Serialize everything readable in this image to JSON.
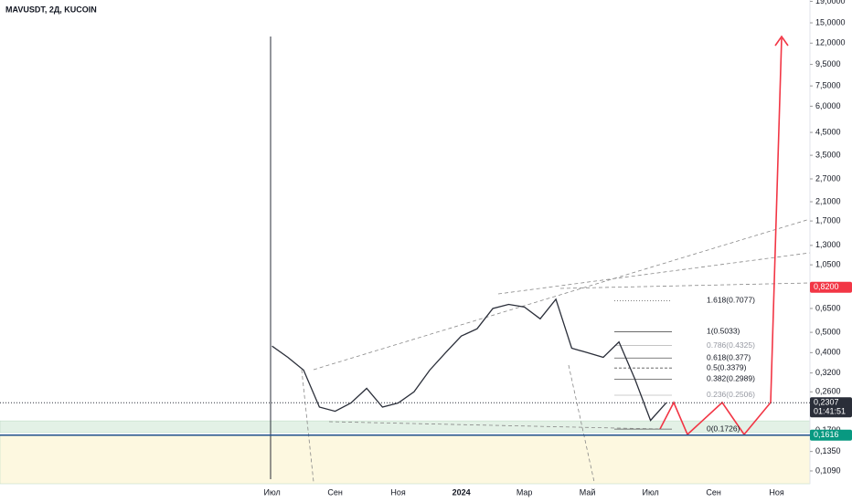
{
  "chart_data": {
    "type": "line",
    "title": "MAVUSDT, 2Д, KUCOIN",
    "log_scale": true,
    "color": "#2a2e39",
    "categories": [
      "Июл",
      null,
      null,
      null,
      "Сен",
      null,
      null,
      null,
      "Ноя",
      null,
      null,
      null,
      "2024",
      null,
      null,
      null,
      "Мар",
      null,
      null,
      null,
      "Май",
      null,
      null,
      null,
      "Июл",
      null,
      null,
      null,
      "Сен",
      null,
      null,
      null,
      "Ноя",
      null,
      null,
      null
    ],
    "values": [
      0.43,
      0.38,
      0.33,
      0.22,
      0.21,
      0.23,
      0.27,
      0.22,
      0.23,
      0.26,
      0.33,
      0.4,
      0.48,
      0.52,
      0.65,
      0.68,
      0.66,
      0.58,
      0.72,
      0.42,
      0.4,
      0.38,
      0.45,
      0.3,
      0.19,
      0.2307,
      null,
      null,
      null,
      null,
      null,
      null,
      null,
      null,
      null,
      null
    ],
    "ylim": [
      0.0947,
      19.28
    ],
    "yticks": [
      {
        "value": 19,
        "label": "19,0000"
      },
      {
        "value": 15,
        "label": "15,0000"
      },
      {
        "value": 12,
        "label": "12,0000"
      },
      {
        "value": 9.5,
        "label": "9,5000"
      },
      {
        "value": 7.5,
        "label": "7,5000"
      },
      {
        "value": 6,
        "label": "6,0000"
      },
      {
        "value": 4.5,
        "label": "4,5000"
      },
      {
        "value": 3.5,
        "label": "3,5000"
      },
      {
        "value": 2.7,
        "label": "2,7000"
      },
      {
        "value": 2.1,
        "label": "2,1000"
      },
      {
        "value": 1.7,
        "label": "1,7000"
      },
      {
        "value": 1.3,
        "label": "1,3000"
      },
      {
        "value": 1.05,
        "label": "1,0500"
      },
      {
        "value": 0.65,
        "label": "0,6500"
      },
      {
        "value": 0.5,
        "label": "0,5000"
      },
      {
        "value": 0.4,
        "label": "0,4000"
      },
      {
        "value": 0.32,
        "label": "0,3200"
      },
      {
        "value": 0.26,
        "label": "0,2600"
      },
      {
        "value": 0.17,
        "label": "0,1700"
      },
      {
        "value": 0.135,
        "label": "0,1350"
      },
      {
        "value": 0.109,
        "label": "0,1090"
      }
    ],
    "price_labels": [
      {
        "value": 0.82,
        "label": "0,8200",
        "color": "#f23645"
      },
      {
        "value": 0.2307,
        "label": "0,2307",
        "sub": "01:41:51",
        "color": "#2a2e39"
      },
      {
        "value": 0.1616,
        "label": "0,1616",
        "color": "#089981"
      }
    ],
    "zones": [
      {
        "from": 0.166,
        "to": 0.189,
        "color": "#e3f1e6"
      },
      {
        "from": 0.0947,
        "to": 0.1616,
        "color": "#fdf8e0"
      }
    ],
    "fib_levels": [
      {
        "value": 0.7077,
        "label": "1.618(0.7077)",
        "color": "#131722"
      },
      {
        "value": 0.5033,
        "label": "1(0.5033)",
        "color": "#131722"
      },
      {
        "value": 0.4325,
        "label": "0.786(0.4325)",
        "color": "#9598a1"
      },
      {
        "value": 0.377,
        "label": "0.618(0.377)",
        "color": "#131722"
      },
      {
        "value": 0.3379,
        "label": "0.5(0.3379)",
        "color": "#131722"
      },
      {
        "value": 0.2989,
        "label": "0.382(0.2989)",
        "color": "#131722"
      },
      {
        "value": 0.2506,
        "label": "0.236(0.2506)",
        "color": "#9598a1"
      },
      {
        "value": 0.1726,
        "label": "0(0.1726)",
        "color": "#131722"
      }
    ]
  }
}
